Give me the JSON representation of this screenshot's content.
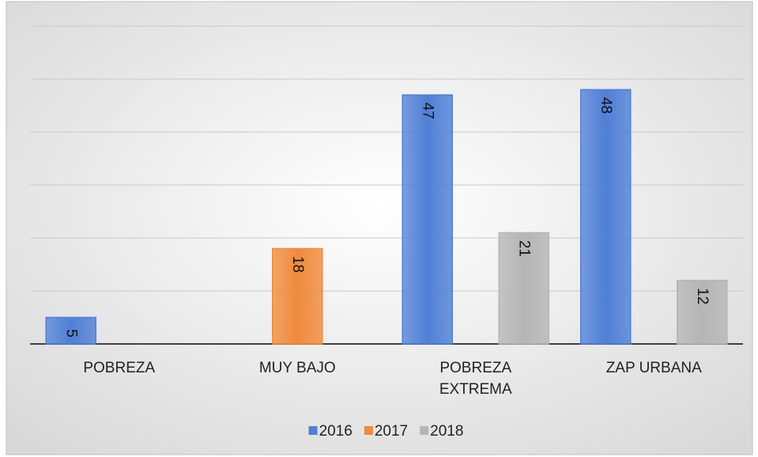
{
  "chart_data": {
    "type": "bar",
    "categories": [
      "POBREZA",
      "MUY BAJO",
      "POBREZA EXTREMA",
      "ZAP URBANA"
    ],
    "series": [
      {
        "name": "2016",
        "color": "#4f7fd6",
        "values": [
          5,
          null,
          47,
          48
        ]
      },
      {
        "name": "2017",
        "color": "#f08a3c",
        "values": [
          null,
          18,
          null,
          null
        ]
      },
      {
        "name": "2018",
        "color": "#b5b5b5",
        "values": [
          null,
          null,
          21,
          12
        ]
      }
    ],
    "ylim": [
      0,
      60
    ],
    "yticks": [
      0,
      10,
      20,
      30,
      40,
      50,
      60
    ],
    "grid": true,
    "legend": "bottom"
  }
}
